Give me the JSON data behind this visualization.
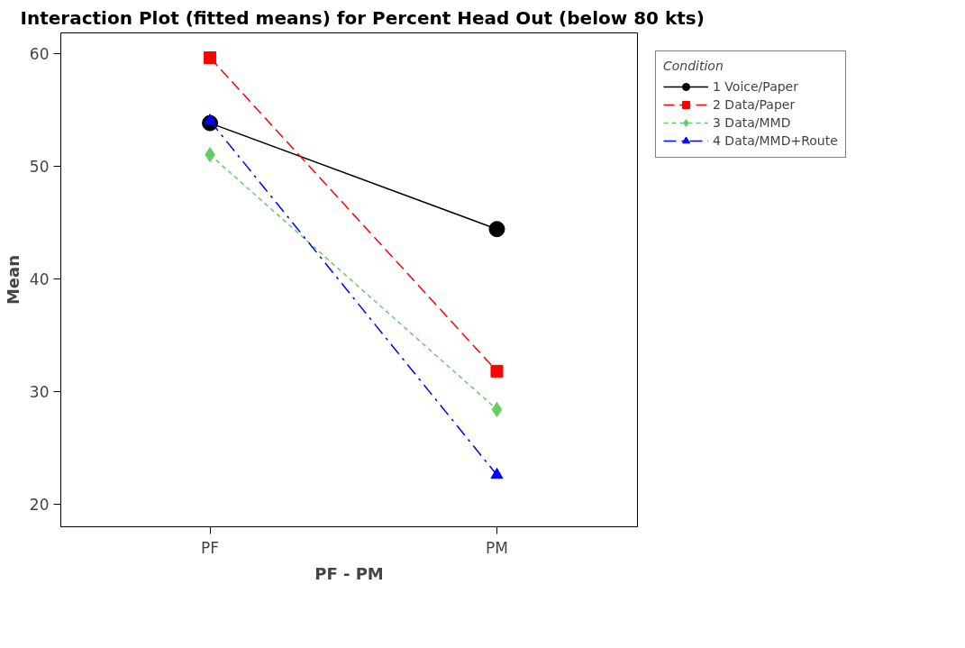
{
  "chart_data": {
    "type": "line",
    "title": "Interaction Plot (fitted means) for Percent Head Out (below 80 kts)",
    "xlabel": "PF - PM",
    "ylabel": "Mean",
    "legend_title": "Condition",
    "categories": [
      "PF",
      "PM"
    ],
    "series": [
      {
        "name": "1 Voice/Paper",
        "color": "#000000",
        "values": [
          53.8,
          44.4
        ],
        "marker": "circle",
        "line_style": "solid"
      },
      {
        "name": "2 Data/Paper",
        "color": "#ff0000",
        "values": [
          59.6,
          31.8
        ],
        "marker": "square",
        "line_style": "dashed"
      },
      {
        "name": "3 Data/MMD",
        "color": "#66cc66",
        "values": [
          51.0,
          28.4
        ],
        "marker": "diamond",
        "line_style": "dotted"
      },
      {
        "name": "4 Data/MMD+Route",
        "color": "#0000ff",
        "values": [
          54.0,
          22.6
        ],
        "marker": "triangle",
        "line_style": "dashdot"
      }
    ],
    "ylim": [
      18,
      61.8
    ],
    "yticks": [
      20,
      30,
      40,
      50,
      60
    ],
    "grid": false,
    "legend": "right"
  }
}
